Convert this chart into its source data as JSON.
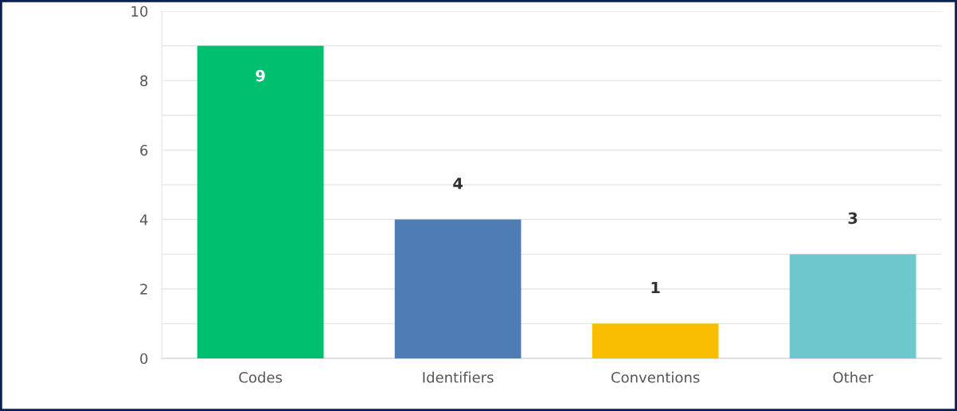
{
  "chart_data": {
    "type": "bar",
    "categories": [
      "Codes",
      "Identifiers",
      "Conventions",
      "Other"
    ],
    "values": [
      9,
      4,
      1,
      3
    ],
    "colors": [
      "#00bf6f",
      "#507cb6",
      "#f9be00",
      "#6cc8cd"
    ],
    "ylim": [
      0,
      10
    ],
    "yticks": [
      0,
      {
        "value": 1,
        "label": null
      },
      2,
      {
        "value": 3,
        "label": null
      },
      4,
      {
        "value": 5,
        "label": null
      },
      6,
      {
        "value": 7,
        "label": null
      },
      8,
      {
        "value": 9,
        "label": null
      },
      10
    ],
    "grid": "y",
    "data_labels": true
  }
}
